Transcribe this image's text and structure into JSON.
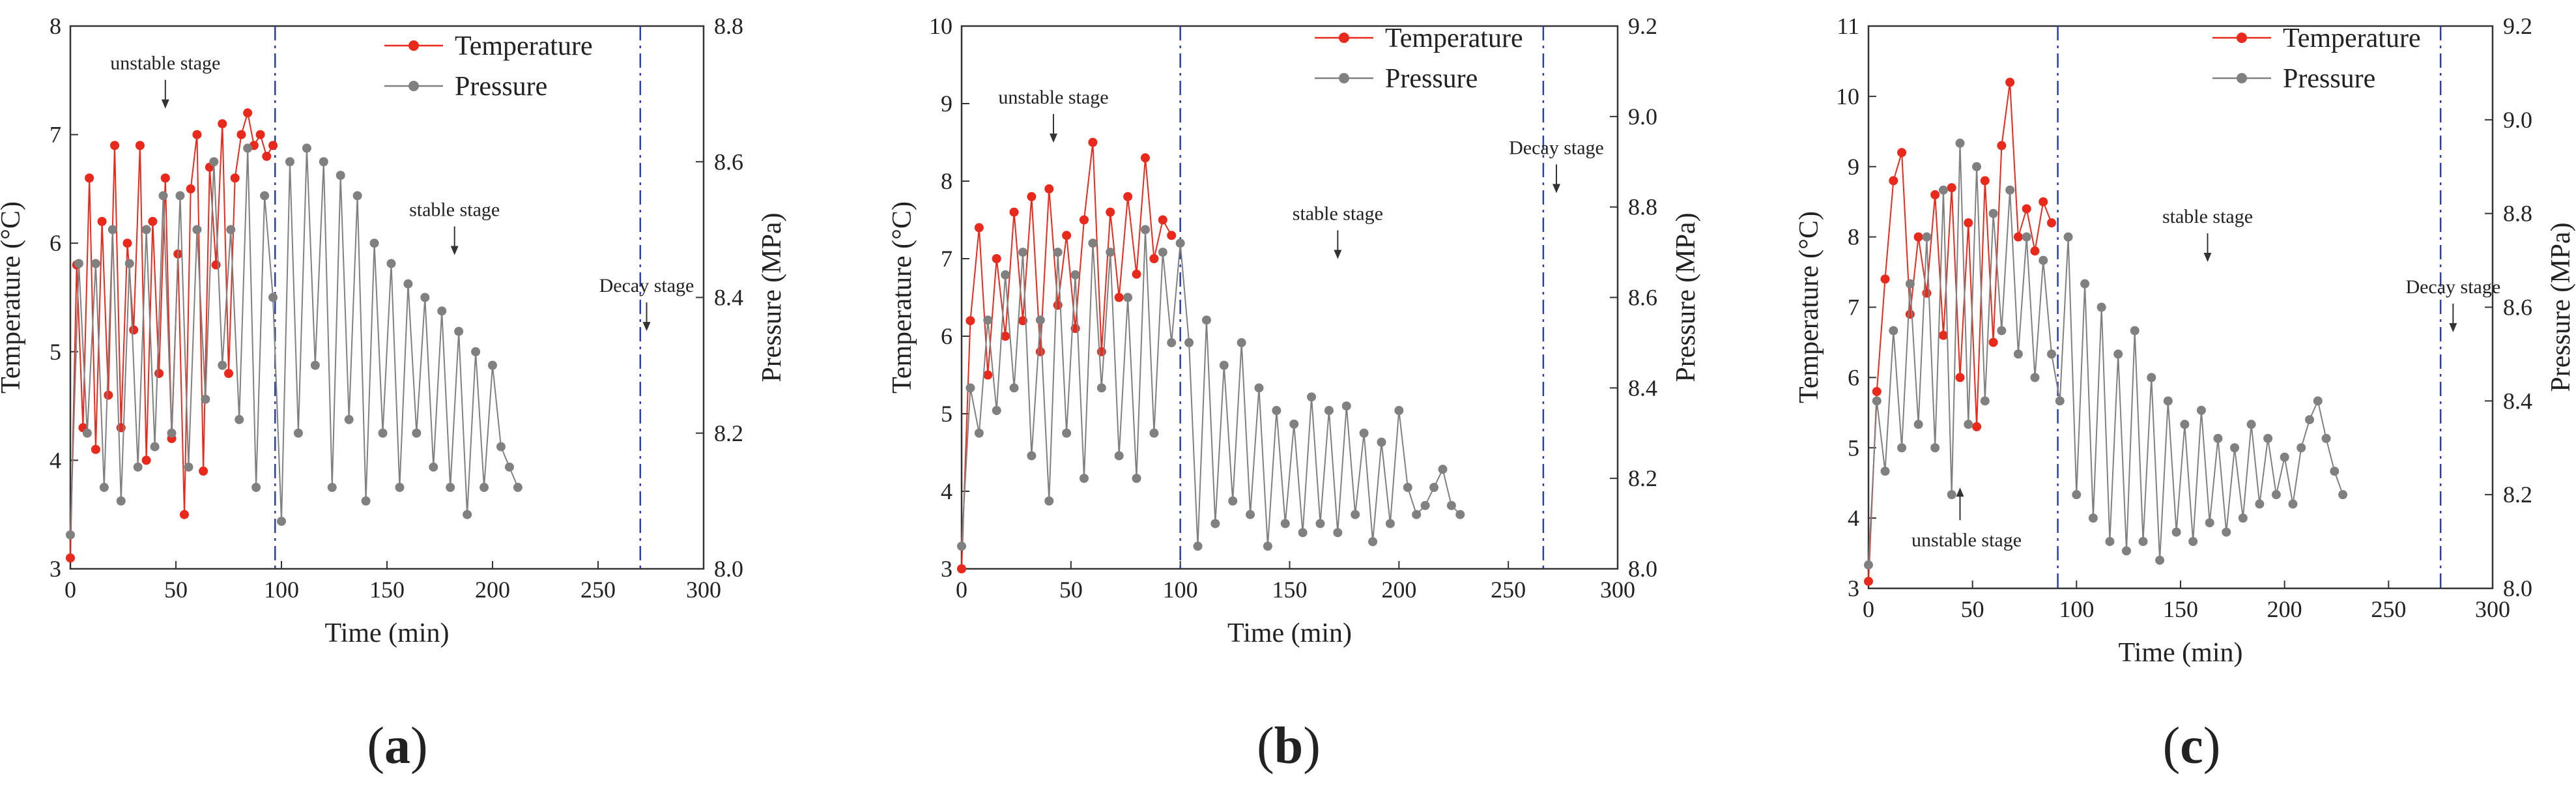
{
  "chart_data": [
    {
      "type": "line",
      "panel_label": "a",
      "xlabel": "Time (min)",
      "ylabel": "Temperature (°C)",
      "y2label": "Pressure (MPa)",
      "xlim": [
        0,
        300
      ],
      "ylim": [
        3,
        8
      ],
      "y2lim": [
        8.0,
        8.8
      ],
      "xticks": [
        0,
        50,
        100,
        150,
        200,
        250,
        300
      ],
      "yticks": [
        3,
        4,
        5,
        6,
        7,
        8
      ],
      "y2ticks": [
        "8.0",
        "8.2",
        "8.4",
        "8.6",
        "8.8"
      ],
      "stage_lines": [
        97,
        270
      ],
      "legend": [
        "Temperature",
        "Pressure"
      ],
      "annotations": [
        {
          "text": "unstable stage",
          "x": 45,
          "y": 7.6,
          "arrow": "down"
        },
        {
          "text": "stable stage",
          "x": 182,
          "y": 6.25,
          "arrow": "down"
        },
        {
          "text": "Decay stage",
          "x": 273,
          "y": 5.55,
          "arrow": "down"
        }
      ],
      "series": [
        {
          "name": "Temperature",
          "axis": "left",
          "color": "#e8291c",
          "x": [
            0,
            3,
            6,
            9,
            12,
            15,
            18,
            21,
            24,
            27,
            30,
            33,
            36,
            39,
            42,
            45,
            48,
            51,
            54,
            57,
            60,
            63,
            66,
            69,
            72,
            75,
            78,
            81,
            84,
            87,
            90,
            93,
            96
          ],
          "y": [
            3.1,
            5.8,
            4.3,
            6.6,
            4.1,
            6.2,
            4.6,
            6.9,
            4.3,
            6.0,
            5.2,
            6.9,
            4.0,
            6.2,
            4.8,
            6.6,
            4.2,
            5.9,
            3.5,
            6.5,
            7.0,
            3.9,
            6.7,
            5.8,
            7.1,
            4.8,
            6.6,
            7.0,
            7.2,
            6.9,
            7.0,
            6.8,
            6.9
          ]
        },
        {
          "name": "Pressure",
          "axis": "right",
          "color": "#808080",
          "x": [
            0,
            4,
            8,
            12,
            16,
            20,
            24,
            28,
            32,
            36,
            40,
            44,
            48,
            52,
            56,
            60,
            64,
            68,
            72,
            76,
            80,
            84,
            88,
            92,
            96,
            100,
            104,
            108,
            112,
            116,
            120,
            124,
            128,
            132,
            136,
            140,
            144,
            148,
            152,
            156,
            160,
            164,
            168,
            172,
            176,
            180,
            184,
            188,
            192,
            196,
            200,
            204,
            208,
            212
          ],
          "y": [
            8.05,
            8.45,
            8.2,
            8.45,
            8.12,
            8.5,
            8.1,
            8.45,
            8.15,
            8.5,
            8.18,
            8.55,
            8.2,
            8.55,
            8.15,
            8.5,
            8.25,
            8.6,
            8.3,
            8.5,
            8.22,
            8.62,
            8.12,
            8.55,
            8.4,
            8.07,
            8.6,
            8.2,
            8.62,
            8.3,
            8.6,
            8.12,
            8.58,
            8.22,
            8.55,
            8.1,
            8.48,
            8.2,
            8.45,
            8.12,
            8.42,
            8.2,
            8.4,
            8.15,
            8.38,
            8.12,
            8.35,
            8.08,
            8.32,
            8.12,
            8.3,
            8.18,
            8.15,
            8.12
          ]
        }
      ]
    },
    {
      "type": "line",
      "panel_label": "b",
      "xlabel": "Time (min)",
      "ylabel": "Temperature (°C)",
      "y2label": "Pressure (MPa)",
      "xlim": [
        0,
        300
      ],
      "ylim": [
        3,
        10
      ],
      "y2lim": [
        8.0,
        9.2
      ],
      "xticks": [
        0,
        50,
        100,
        150,
        200,
        250,
        300
      ],
      "yticks": [
        3,
        4,
        5,
        6,
        7,
        8,
        9,
        10
      ],
      "y2ticks": [
        "8.0",
        "8.2",
        "8.4",
        "8.6",
        "8.8",
        "9.0",
        "9.2"
      ],
      "stage_lines": [
        100,
        266
      ],
      "legend": [
        "Temperature",
        "Pressure"
      ],
      "annotations": [
        {
          "text": "unstable stage",
          "x": 42,
          "y": 9.0,
          "arrow": "down"
        },
        {
          "text": "stable stage",
          "x": 172,
          "y": 7.5,
          "arrow": "down"
        },
        {
          "text": "Decay stage",
          "x": 272,
          "y": 8.35,
          "arrow": "down"
        }
      ],
      "series": [
        {
          "name": "Temperature",
          "axis": "left",
          "color": "#e8291c",
          "x": [
            0,
            4,
            8,
            12,
            16,
            20,
            24,
            28,
            32,
            36,
            40,
            44,
            48,
            52,
            56,
            60,
            64,
            68,
            72,
            76,
            80,
            84,
            88,
            92,
            96
          ],
          "y": [
            3.0,
            6.2,
            7.4,
            5.5,
            7.0,
            6.0,
            7.6,
            6.2,
            7.8,
            5.8,
            7.9,
            6.4,
            7.3,
            6.1,
            7.5,
            8.5,
            5.8,
            7.6,
            6.5,
            7.8,
            6.8,
            8.3,
            7.0,
            7.5,
            7.3
          ]
        },
        {
          "name": "Pressure",
          "axis": "right",
          "color": "#808080",
          "x": [
            0,
            4,
            8,
            12,
            16,
            20,
            24,
            28,
            32,
            36,
            40,
            44,
            48,
            52,
            56,
            60,
            64,
            68,
            72,
            76,
            80,
            84,
            88,
            92,
            96,
            100,
            104,
            108,
            112,
            116,
            120,
            124,
            128,
            132,
            136,
            140,
            144,
            148,
            152,
            156,
            160,
            164,
            168,
            172,
            176,
            180,
            184,
            188,
            192,
            196,
            200,
            204,
            208,
            212,
            216,
            220,
            224,
            228
          ],
          "y": [
            8.05,
            8.4,
            8.3,
            8.55,
            8.35,
            8.65,
            8.4,
            8.7,
            8.25,
            8.55,
            8.15,
            8.7,
            8.3,
            8.65,
            8.2,
            8.72,
            8.4,
            8.7,
            8.25,
            8.6,
            8.2,
            8.75,
            8.3,
            8.7,
            8.5,
            8.72,
            8.5,
            8.05,
            8.55,
            8.1,
            8.45,
            8.15,
            8.5,
            8.12,
            8.4,
            8.05,
            8.35,
            8.1,
            8.32,
            8.08,
            8.38,
            8.1,
            8.35,
            8.08,
            8.36,
            8.12,
            8.3,
            8.06,
            8.28,
            8.1,
            8.35,
            8.18,
            8.12,
            8.14,
            8.18,
            8.22,
            8.14,
            8.12
          ]
        }
      ]
    },
    {
      "type": "line",
      "panel_label": "c",
      "xlabel": "Time (min)",
      "ylabel": "Temperature (°C)",
      "y2label": "Pressure (MPa)",
      "xlim": [
        0,
        300
      ],
      "ylim": [
        3,
        11
      ],
      "y2lim": [
        8.0,
        9.2
      ],
      "xticks": [
        0,
        50,
        100,
        150,
        200,
        250,
        300
      ],
      "yticks": [
        3,
        4,
        5,
        6,
        7,
        8,
        9,
        10,
        11
      ],
      "y2ticks": [
        "8.0",
        "8.2",
        "8.4",
        "8.6",
        "8.8",
        "9.0",
        "9.2"
      ],
      "stage_lines": [
        91,
        275
      ],
      "legend": [
        "Temperature",
        "Pressure"
      ],
      "annotations": [
        {
          "text": "unstable stage",
          "x": 44,
          "y": 3.6,
          "arrow": "up"
        },
        {
          "text": "stable stage",
          "x": 163,
          "y": 8.2,
          "arrow": "down"
        },
        {
          "text": "Decay stage",
          "x": 281,
          "y": 7.2,
          "arrow": "down"
        }
      ],
      "series": [
        {
          "name": "Temperature",
          "axis": "left",
          "color": "#e8291c",
          "x": [
            0,
            4,
            8,
            12,
            16,
            20,
            24,
            28,
            32,
            36,
            40,
            44,
            48,
            52,
            56,
            60,
            64,
            68,
            72,
            76,
            80,
            84,
            88
          ],
          "y": [
            3.1,
            5.8,
            7.4,
            8.8,
            9.2,
            6.9,
            8.0,
            7.2,
            8.6,
            6.6,
            8.7,
            6.0,
            8.2,
            5.3,
            8.8,
            6.5,
            9.3,
            10.2,
            8.0,
            8.4,
            7.8,
            8.5,
            8.2
          ]
        },
        {
          "name": "Pressure",
          "axis": "right",
          "color": "#808080",
          "x": [
            0,
            4,
            8,
            12,
            16,
            20,
            24,
            28,
            32,
            36,
            40,
            44,
            48,
            52,
            56,
            60,
            64,
            68,
            72,
            76,
            80,
            84,
            88,
            92,
            96,
            100,
            104,
            108,
            112,
            116,
            120,
            124,
            128,
            132,
            136,
            140,
            144,
            148,
            152,
            156,
            160,
            164,
            168,
            172,
            176,
            180,
            184,
            188,
            192,
            196,
            200,
            204,
            208,
            212,
            216,
            220,
            224,
            228
          ],
          "y": [
            8.05,
            8.4,
            8.25,
            8.55,
            8.3,
            8.65,
            8.35,
            8.75,
            8.3,
            8.85,
            8.2,
            8.95,
            8.35,
            8.9,
            8.4,
            8.8,
            8.55,
            8.85,
            8.5,
            8.75,
            8.45,
            8.7,
            8.5,
            8.4,
            8.75,
            8.2,
            8.65,
            8.15,
            8.6,
            8.1,
            8.5,
            8.08,
            8.55,
            8.1,
            8.45,
            8.06,
            8.4,
            8.12,
            8.35,
            8.1,
            8.38,
            8.14,
            8.32,
            8.12,
            8.3,
            8.15,
            8.35,
            8.18,
            8.32,
            8.2,
            8.28,
            8.18,
            8.3,
            8.36,
            8.4,
            8.32,
            8.25,
            8.2
          ]
        }
      ]
    }
  ]
}
